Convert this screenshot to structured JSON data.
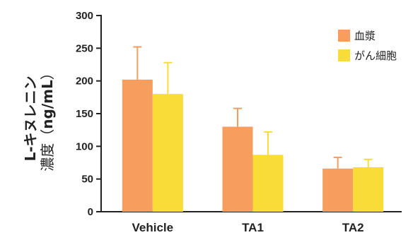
{
  "chart_data": {
    "type": "bar",
    "categories": [
      "Vehicle",
      "TA1",
      "TA2"
    ],
    "series": [
      {
        "name": "血漿",
        "values": [
          202,
          130,
          66
        ],
        "errors": [
          50,
          28,
          17
        ],
        "color": "#f79e5f"
      },
      {
        "name": "がん細胞",
        "values": [
          180,
          87,
          68
        ],
        "errors": [
          48,
          35,
          12
        ],
        "color": "#f9dc38"
      }
    ],
    "ylabel_line1": "L-キヌレニン",
    "ylabel_line2_text": "濃度（",
    "ylabel_line2_unit": "ng/mL",
    "ylabel_line2_close": "）",
    "ylim": [
      0,
      300
    ],
    "yticks": [
      0,
      50,
      100,
      150,
      200,
      250,
      300
    ],
    "grid": false,
    "legend_position": "top-right"
  }
}
